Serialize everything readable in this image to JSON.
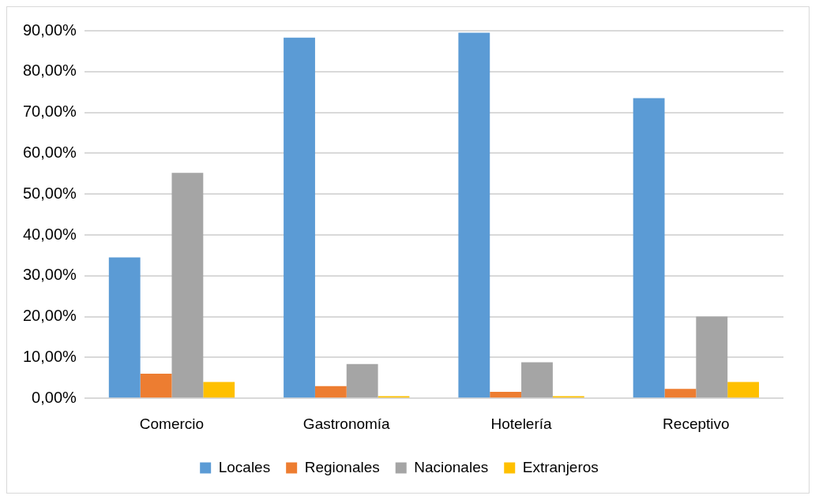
{
  "chart_data": {
    "type": "bar",
    "categories": [
      "Comercio",
      "Gastronomía",
      "Hotelería",
      "Receptivo"
    ],
    "series": [
      {
        "name": "Locales",
        "color": "#5b9bd5",
        "values": [
          34.5,
          88.3,
          89.5,
          73.5
        ]
      },
      {
        "name": "Regionales",
        "color": "#ed7d31",
        "values": [
          6,
          3,
          1.6,
          2.3
        ]
      },
      {
        "name": "Nacionales",
        "color": "#a5a5a5",
        "values": [
          55.2,
          8.4,
          8.8,
          20
        ]
      },
      {
        "name": "Extranjeros",
        "color": "#ffc000",
        "values": [
          4,
          0.5,
          0.5,
          4
        ]
      }
    ],
    "ylim": [
      0,
      90
    ],
    "yticks": [
      {
        "value": 0,
        "label": "0,00%"
      },
      {
        "value": 10,
        "label": "10,00%"
      },
      {
        "value": 20,
        "label": "20,00%"
      },
      {
        "value": 30,
        "label": "30,00%"
      },
      {
        "value": 40,
        "label": "40,00%"
      },
      {
        "value": 50,
        "label": "50,00%"
      },
      {
        "value": 60,
        "label": "60,00%"
      },
      {
        "value": 70,
        "label": "70,00%"
      },
      {
        "value": 80,
        "label": "80,00%"
      },
      {
        "value": 90,
        "label": "90,00%"
      }
    ],
    "grid": "y",
    "legend": "bottom"
  }
}
